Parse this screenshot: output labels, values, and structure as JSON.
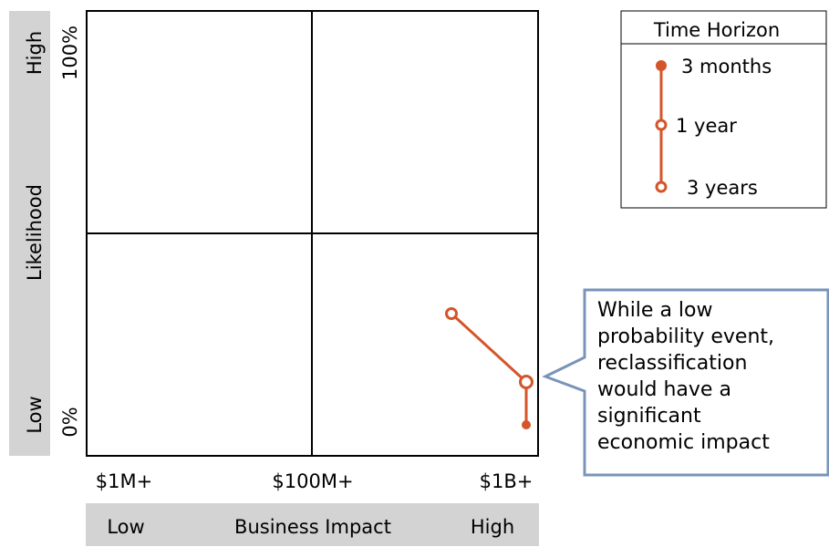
{
  "y_axis": {
    "title": "Likelihood",
    "high_label": "High",
    "low_label": "Low",
    "top_value": "100%",
    "bottom_value": "0%"
  },
  "x_axis": {
    "title": "Business Impact",
    "low_label": "Low",
    "high_label": "High",
    "ticks": [
      "$1M+",
      "$100M+",
      "$1B+"
    ]
  },
  "legend": {
    "title": "Time Horizon",
    "items": [
      "3 months",
      "1 year",
      "3 years"
    ]
  },
  "callout": {
    "lines": [
      "While a low",
      "probability event,",
      "reclassification",
      "would have a",
      "significant",
      "economic impact"
    ]
  },
  "colors": {
    "accent": "#d4552a",
    "axis_band": "#d3d3d3",
    "callout_border": "#7a94b8"
  },
  "trajectory": {
    "note": "risk point over time horizons",
    "points_order": [
      "3 years",
      "1 year",
      "3 months"
    ]
  }
}
